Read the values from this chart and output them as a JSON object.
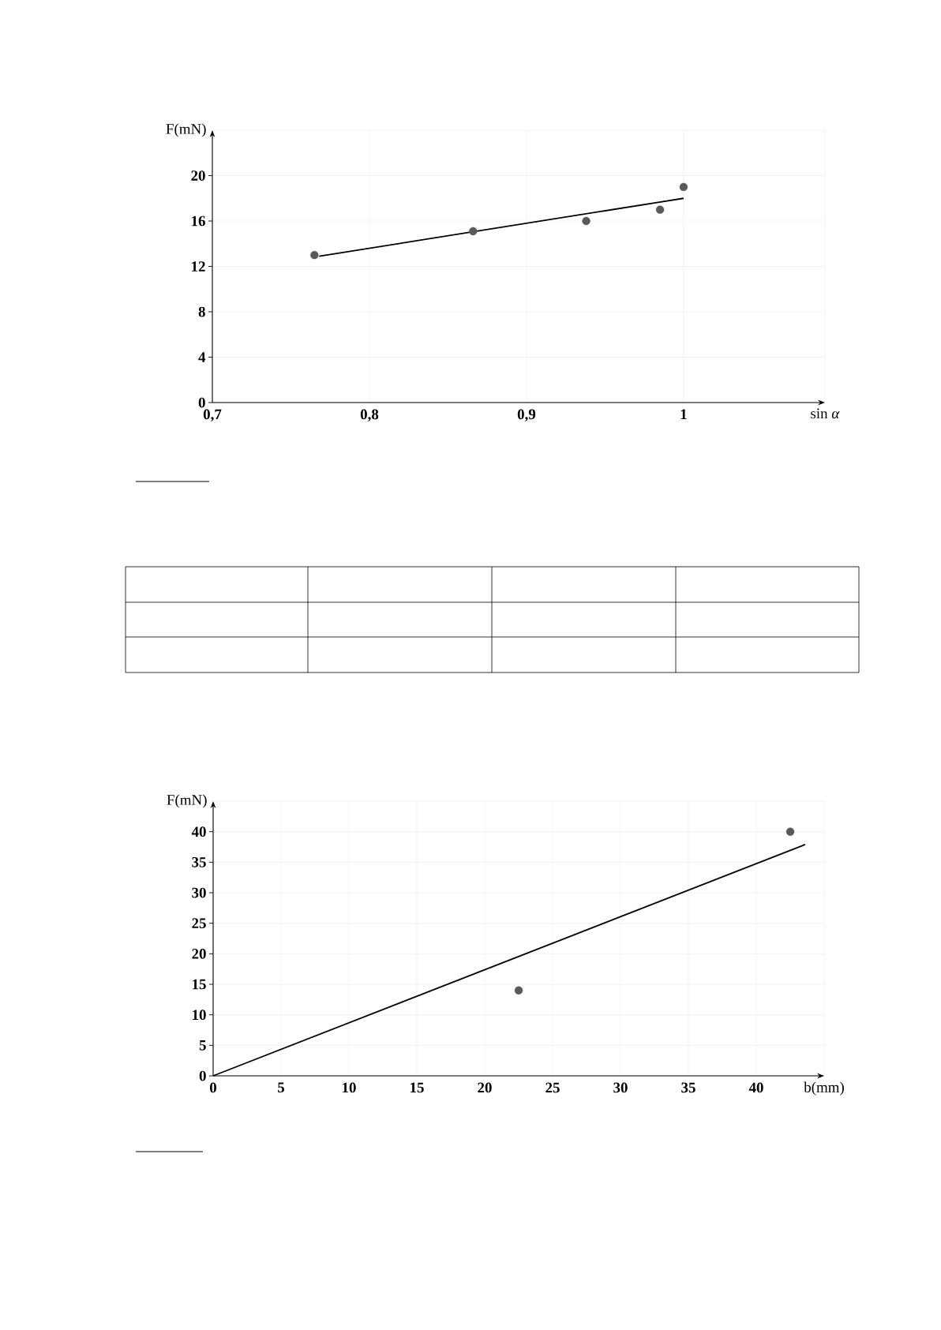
{
  "chart_data": [
    {
      "type": "scatter",
      "xlabel": "sin *α*",
      "ylabel": "F(mN)",
      "xlim": [
        0.7,
        1.09
      ],
      "ylim": [
        0,
        24
      ],
      "xticks": [
        {
          "value": 0.7,
          "label": "0,7"
        },
        {
          "value": 0.8,
          "label": "0,8"
        },
        {
          "value": 0.9,
          "label": "0,9"
        },
        {
          "value": 1,
          "label": "1"
        }
      ],
      "yticks": [
        0,
        4,
        8,
        12,
        16,
        20
      ],
      "grid": true,
      "series": [
        {
          "color": "#595959",
          "marker": "circle",
          "x": [
            0.765,
            0.866,
            0.938,
            0.985,
            1.0
          ],
          "values": [
            13.0,
            15.1,
            16.0,
            17.0,
            19.0
          ]
        },
        {
          "type": "line",
          "color": "#000000",
          "line_style": "solid",
          "x": [
            0.768,
            1.0
          ],
          "values": [
            12.9,
            18.0
          ]
        }
      ]
    },
    {
      "type": "scatter",
      "xlabel": "b(mm)",
      "ylabel": "F(mN)",
      "xlim": [
        0,
        45
      ],
      "ylim": [
        0,
        45
      ],
      "xticks": [
        0,
        5,
        10,
        15,
        20,
        25,
        30,
        35,
        40
      ],
      "yticks": [
        0,
        5,
        10,
        15,
        20,
        25,
        30,
        35,
        40
      ],
      "grid": true,
      "series": [
        {
          "color": "#595959",
          "marker": "circle",
          "x": [
            22.5,
            42.5
          ],
          "values": [
            14.0,
            40.0
          ]
        },
        {
          "type": "line",
          "color": "#000000",
          "line_style": "solid",
          "x": [
            0,
            43.6
          ],
          "values": [
            0,
            37.9
          ]
        }
      ]
    }
  ]
}
